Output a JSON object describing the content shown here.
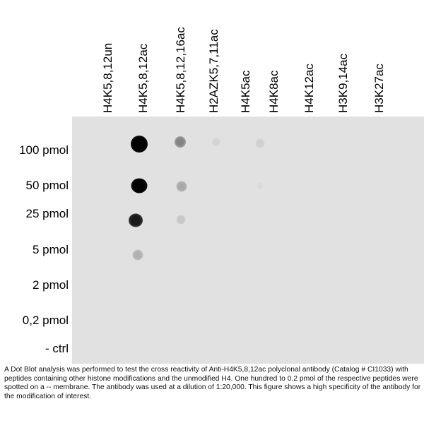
{
  "columns": [
    "H4K5,8,12un",
    "H4K5,8,12ac",
    "H4K5,8,12,16ac",
    "H2AZK5,7,11ac",
    "H4K5ac",
    "H4K8ac",
    "H4K12ac",
    "H3K9,14ac",
    "H3K27ac"
  ],
  "rows": [
    "100 pmol",
    "50 pmol",
    "25 pmol",
    "5 pmol",
    "2 pmol",
    "0,2 pmol",
    "- ctrl"
  ],
  "caption": "A Dot Blot analysis was performed to test the cross reactivity of Anti-H4K5,8,12ac polyclonal antibody (Catalog # CI1033) with peptides containing other histone modifications and the unmodified H4. One hundred to 0.2 pmol of the respective peptides were spotted on a -- membrane. The antibody was used at a dilution of 1:20,000. This figure shows a high specificity of the antibody for the modification of interest."
}
